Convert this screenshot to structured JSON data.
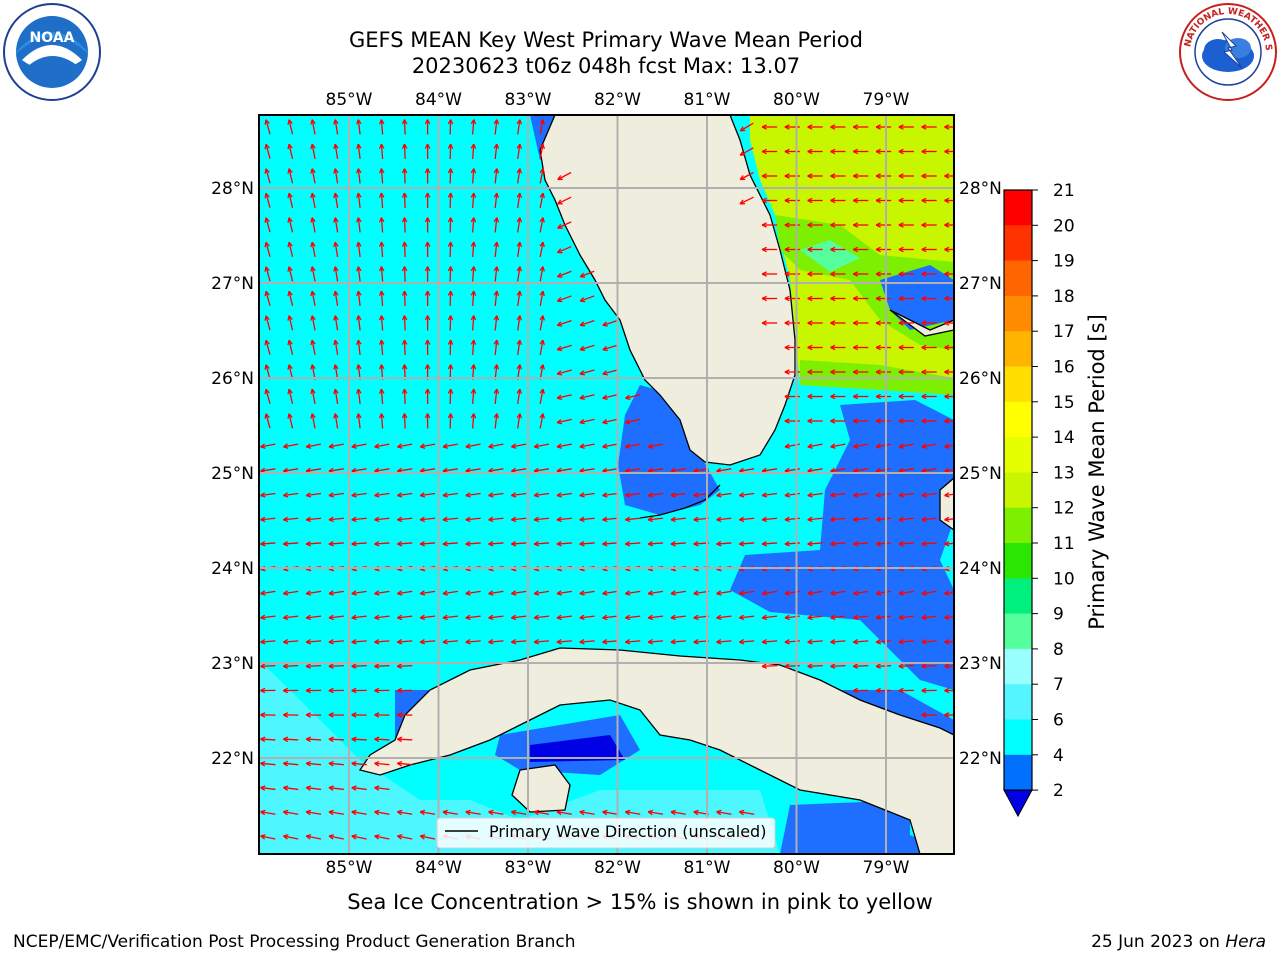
{
  "header": {
    "title_line1": "GEFS MEAN Key West Primary Wave Mean Period",
    "title_line2": "20230623 t06z 048h fcst   Max: 13.07"
  },
  "logos": {
    "left": "NOAA",
    "right": "NATIONAL WEATHER SERVICE"
  },
  "map": {
    "lon_labels": [
      "85°W",
      "84°W",
      "83°W",
      "82°W",
      "81°W",
      "80°W",
      "79°W"
    ],
    "lat_labels": [
      "28°N",
      "27°N",
      "26°N",
      "25°N",
      "24°N",
      "23°N",
      "22°N"
    ],
    "legend_label": "Primary Wave Direction (unscaled)"
  },
  "colorbar": {
    "label": "Primary Wave Mean Period [s]",
    "ticks": [
      "21",
      "20",
      "19",
      "18",
      "17",
      "16",
      "15",
      "14",
      "13",
      "12",
      "11",
      "10",
      "9",
      "8",
      "7",
      "6",
      "4",
      "2"
    ],
    "colors": [
      "#ff0000",
      "#ff3300",
      "#ff6600",
      "#ff8c00",
      "#ffb400",
      "#ffde00",
      "#ffff00",
      "#e6ff00",
      "#c8f500",
      "#7cf000",
      "#2ae600",
      "#00f07d",
      "#55ff9c",
      "#99ffff",
      "#55f5ff",
      "#00ffff",
      "#0070ff",
      "#0000e6"
    ]
  },
  "caption": "Sea Ice Concentration > 15% is shown in pink to yellow",
  "footer": {
    "left": "NCEP/EMC/Verification Post Processing Product Generation Branch",
    "right_date": "25 Jun 2023 on ",
    "right_host": "Hera"
  }
}
